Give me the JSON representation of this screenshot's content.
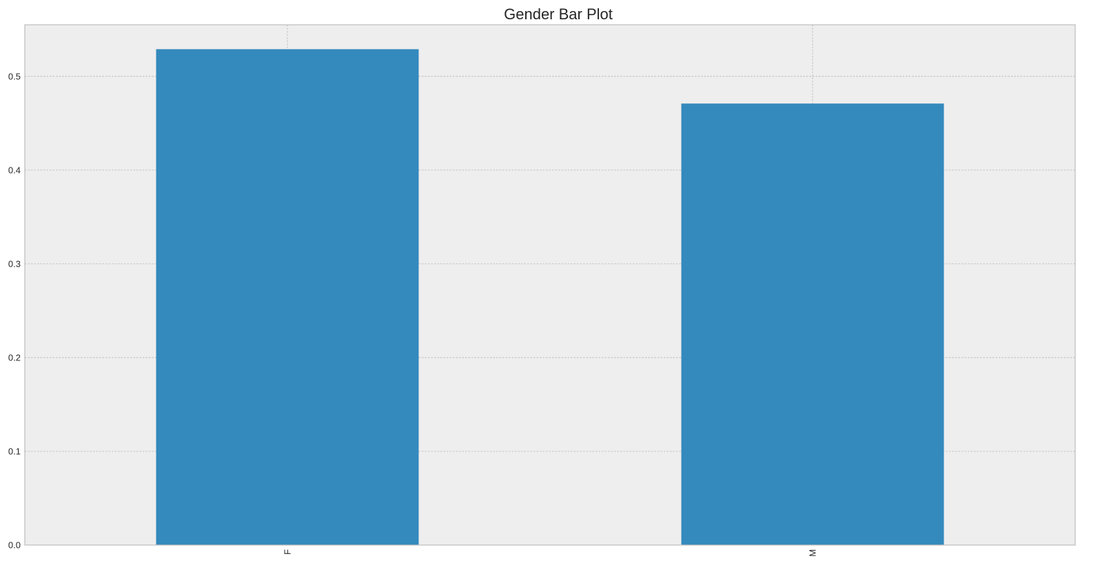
{
  "chart_data": {
    "type": "bar",
    "title": "Gender Bar Plot",
    "xlabel": "",
    "ylabel": "",
    "categories": [
      "F",
      "M"
    ],
    "values": [
      0.529,
      0.471
    ],
    "ylim": [
      0,
      0.555
    ],
    "yticks": [
      0.0,
      0.1,
      0.2,
      0.3,
      0.4,
      0.5
    ],
    "ytick_labels": [
      "0.0",
      "0.1",
      "0.2",
      "0.3",
      "0.4",
      "0.5"
    ],
    "x_tick_rotation": "vertical",
    "grid": true,
    "legend": "none",
    "colors": {
      "bar": "#348abd",
      "plot_background": "#eeeeee",
      "grid": "#b2b2b2",
      "frame": "#bcbcbc",
      "text": "#262626"
    }
  }
}
